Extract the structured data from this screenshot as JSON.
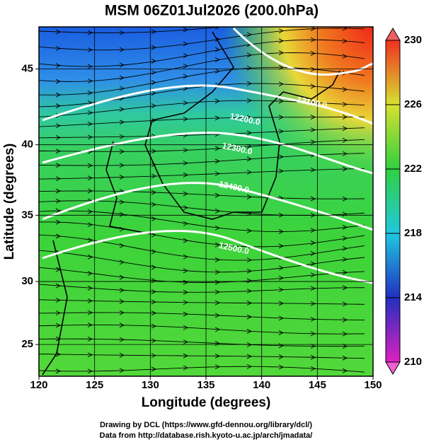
{
  "title": "MSM 06Z01Jul2026 (200.0hPa)",
  "x_axis": {
    "label": "Longitude (degrees)",
    "lim": [
      120,
      150
    ],
    "ticks": [
      120,
      125,
      130,
      135,
      140,
      145,
      150
    ]
  },
  "y_axis": {
    "label": "Latitude  (degrees)",
    "lim": [
      22.4,
      47.6
    ],
    "ticks": [
      25,
      30,
      35,
      40,
      45
    ]
  },
  "colorbar": {
    "lim": [
      210,
      230
    ],
    "ticks": [
      210,
      214,
      218,
      222,
      226,
      230
    ]
  },
  "contours": [
    {
      "label": "12100.0",
      "lon": 144.5,
      "lat": 42.8
    },
    {
      "label": "12200.0",
      "lon": 138.5,
      "lat": 41.7
    },
    {
      "label": "12300.0",
      "lon": 137.8,
      "lat": 39.7
    },
    {
      "label": "12400.0",
      "lon": 137.5,
      "lat": 37.0
    },
    {
      "label": "12500.0",
      "lon": 137.5,
      "lat": 32.5
    }
  ],
  "credits": [
    "Drawing by DCL (https://www.gfd-dennou.org/library/dcl/)",
    "Data from http://database.rish.kyoto-u.ac.jp/arch/jmadata/"
  ]
}
